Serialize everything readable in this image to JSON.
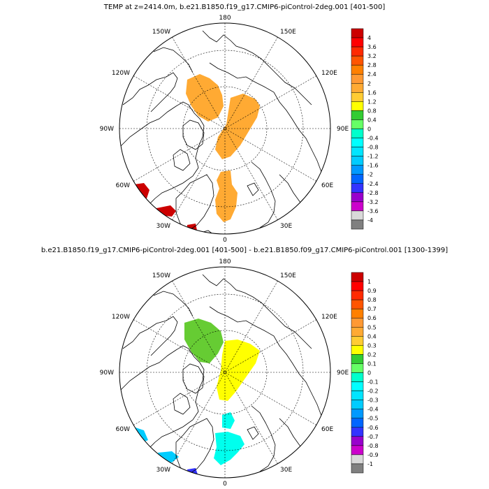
{
  "panels": [
    {
      "id": "top",
      "title": "TEMP at z=2414.0m, b.e21.B1850.f19_g17.CMIP6-piControl-2deg.001 [401-500]",
      "lon_labels": {
        "deg180": "180",
        "e150": "150E",
        "e120": "120E",
        "e90": "90E",
        "e60": "60E",
        "e30": "30E",
        "deg0": "0",
        "w30": "30W",
        "w60": "60W",
        "w90": "90W",
        "w120": "120W",
        "w150": "150W"
      },
      "colorbar": {
        "labels": [
          "4",
          "3.6",
          "3.2",
          "2.8",
          "2.4",
          "2",
          "1.6",
          "1.2",
          "0.8",
          "0.4",
          "0",
          "-0.4",
          "-0.8",
          "-1.2",
          "-1.6",
          "-2",
          "-2.4",
          "-2.8",
          "-3.2",
          "-3.6",
          "-4"
        ],
        "colors": [
          "#ff0000",
          "#ff2a00",
          "#ff5500",
          "#ff8000",
          "#ff9933",
          "#ffaa33",
          "#ffcc33",
          "#ffff00",
          "#33cc33",
          "#66ff66",
          "#00ffcc",
          "#00ffff",
          "#00e5ff",
          "#00ccff",
          "#0099ff",
          "#0066ff",
          "#3333ff",
          "#9900cc",
          "#cc00cc",
          "#d9d9d9",
          "#808080"
        ],
        "top_color": "#cc0000"
      },
      "fields": [
        {
          "name": "warm-patch-1",
          "color": "#ffaa33"
        },
        {
          "name": "warm-patch-2",
          "color": "#ffaa33"
        },
        {
          "name": "warm-patch-3",
          "color": "#ffaa33"
        },
        {
          "name": "hot-patch-1",
          "color": "#cc0000"
        },
        {
          "name": "hot-patch-2",
          "color": "#cc0000"
        },
        {
          "name": "hot-patch-3",
          "color": "#cc0000"
        }
      ]
    },
    {
      "id": "bottom",
      "title": "b.e21.B1850.f19_g17.CMIP6-piControl-2deg.001 [401-500] - b.e21.B1850.f09_g17.CMIP6-piControl.001 [1300-1399]",
      "lon_labels": {
        "deg180": "180",
        "e150": "150E",
        "e120": "120E",
        "e90": "90E",
        "e60": "60E",
        "e30": "30E",
        "deg0": "0",
        "w30": "30W",
        "w60": "60W",
        "w90": "90W",
        "w120": "120W",
        "w150": "150W"
      },
      "colorbar": {
        "labels": [
          "1",
          "0.9",
          "0.8",
          "0.7",
          "0.6",
          "0.5",
          "0.4",
          "0.3",
          "0.2",
          "0.1",
          "0",
          "-0.1",
          "-0.2",
          "-0.3",
          "-0.4",
          "-0.5",
          "-0.6",
          "-0.7",
          "-0.8",
          "-0.9",
          "-1"
        ],
        "colors": [
          "#ff0000",
          "#ff2a00",
          "#ff5500",
          "#ff8000",
          "#ff9933",
          "#ffaa33",
          "#ffcc33",
          "#ffff00",
          "#33cc33",
          "#66ff66",
          "#00ffcc",
          "#00ffff",
          "#00e5ff",
          "#00ccff",
          "#0099ff",
          "#0066ff",
          "#3333ff",
          "#9900cc",
          "#cc00cc",
          "#d9d9d9",
          "#808080"
        ],
        "top_color": "#cc0000"
      },
      "fields": [
        {
          "name": "green-patch",
          "color": "#66cc33"
        },
        {
          "name": "yellow-patch",
          "color": "#ffff00"
        },
        {
          "name": "cyan-patch-1",
          "color": "#00ffee"
        },
        {
          "name": "cyan-patch-2",
          "color": "#00ffee"
        },
        {
          "name": "blue-patch-1",
          "color": "#00ccff"
        },
        {
          "name": "blue-patch-2",
          "color": "#00ccff"
        },
        {
          "name": "navy-patch",
          "color": "#3333ff"
        }
      ]
    }
  ]
}
